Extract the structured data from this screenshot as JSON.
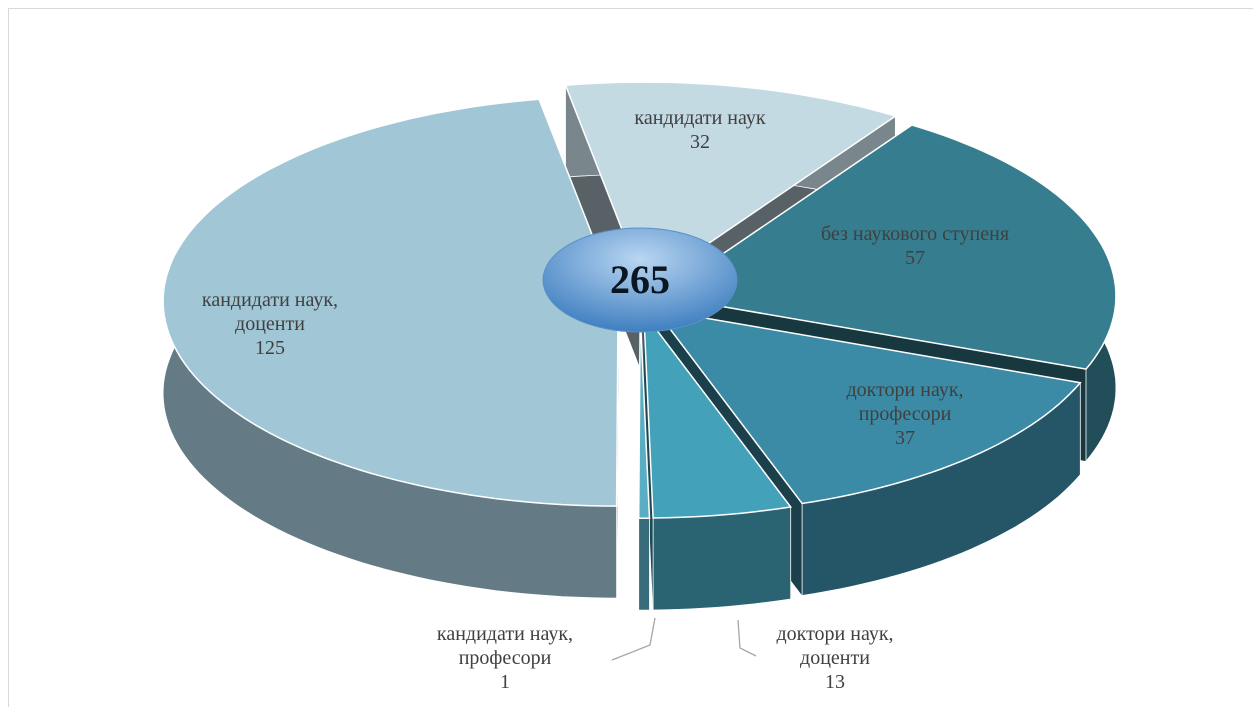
{
  "chart_data": {
    "type": "pie",
    "categories": [
      "кандидати наук",
      "без наукового ступеня",
      "доктори наук, професори",
      "доктори наук, доценти",
      "кандидати наук, професори",
      "кандидати наук, доценти"
    ],
    "values": [
      32,
      57,
      37,
      13,
      1,
      125
    ],
    "colors": [
      "#c3dae3",
      "#357d8f",
      "#3c8ba6",
      "#43a2b9",
      "#5aaec4",
      "#a1c7d7"
    ],
    "total": 265
  }
}
